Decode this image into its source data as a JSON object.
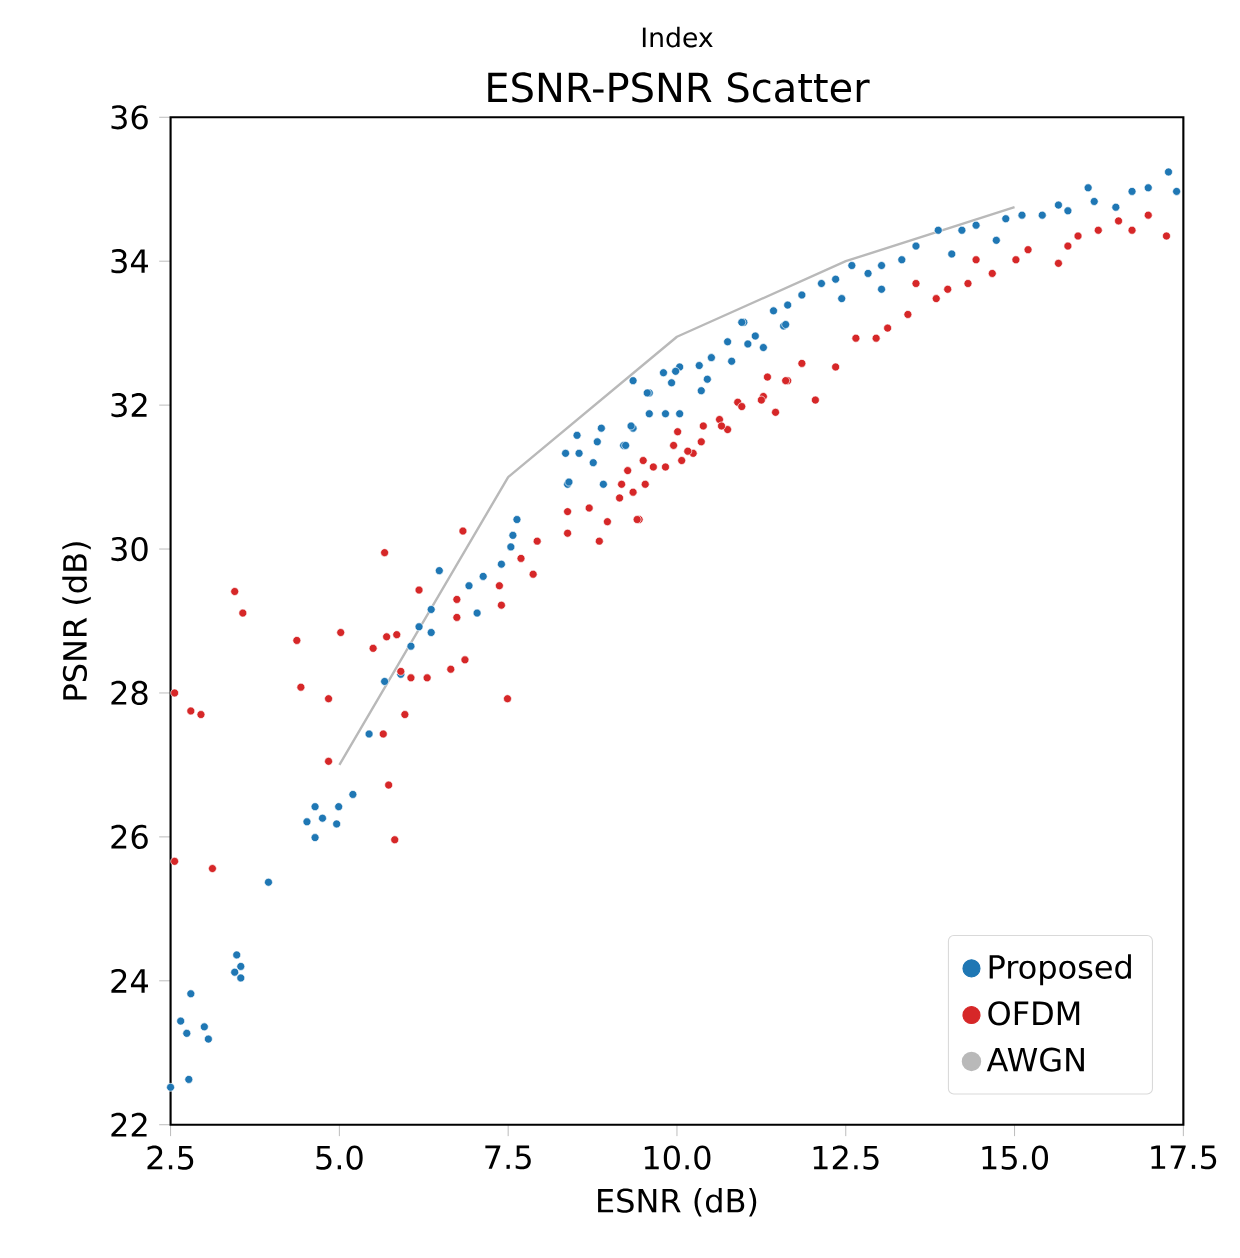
{
  "chart_data": {
    "type": "scatter",
    "title": "ESNR-PSNR Scatter",
    "xlabel": "ESNR (dB)",
    "ylabel": "PSNR (dB)",
    "annotations": [
      "Index"
    ],
    "xlim": [
      2.5,
      17.5
    ],
    "ylim": [
      22,
      36
    ],
    "xticks": [
      {
        "value": 2.5,
        "label": "2.5"
      },
      {
        "value": 5,
        "label": "5.0"
      },
      {
        "value": 7.5,
        "label": "7.5"
      },
      {
        "value": 10,
        "label": "10.0"
      },
      {
        "value": 12.5,
        "label": "12.5"
      },
      {
        "value": 15,
        "label": "15.0"
      },
      {
        "value": 17.5,
        "label": "17.5"
      }
    ],
    "yticks": [
      22,
      24,
      26,
      28,
      30,
      32,
      34,
      36
    ],
    "legend": "bottom right",
    "marker": "circle",
    "series": [
      {
        "name": "Proposed",
        "color": "#1f77b4",
        "x": [
          2.5,
          2.77,
          2.65,
          2.74,
          2.8,
          3.0,
          3.06,
          3.48,
          3.45,
          3.54,
          3.54,
          3.95,
          4.52,
          4.64,
          4.75,
          4.64,
          4.99,
          4.96,
          5.2,
          5.44,
          5.67,
          5.91,
          6.06,
          6.18,
          6.36,
          6.36,
          6.48,
          6.92,
          7.04,
          7.13,
          7.4,
          7.54,
          7.57,
          7.63,
          8.38,
          8.4,
          8.91,
          8.35,
          8.55,
          8.52,
          8.76,
          8.82,
          8.88,
          9.21,
          9.35,
          9.35,
          9.59,
          9.59,
          9.8,
          9.83,
          10.04,
          9.92,
          10.04,
          10.33,
          10.36,
          10.45,
          10.51,
          10.75,
          10.81,
          10.99,
          11.05,
          11.16,
          11.28,
          11.43,
          11.58,
          17.28,
          17.4,
          16.98,
          16.74,
          16.5,
          16.18,
          16.09,
          15.79,
          15.65,
          15.41,
          15.11,
          14.87,
          14.73,
          14.43,
          14.22,
          14.07,
          13.87,
          13.54,
          13.33,
          13.03,
          13.03,
          12.83,
          12.59,
          12.44,
          12.35,
          12.14,
          11.85,
          11.64,
          11.61,
          10.96,
          9.98,
          9.56,
          9.32,
          9.24
        ],
        "values": [
          22.52,
          22.63,
          23.44,
          23.27,
          23.82,
          23.36,
          23.19,
          24.36,
          24.12,
          24.2,
          24.04,
          25.37,
          26.21,
          26.42,
          26.26,
          25.99,
          26.42,
          26.18,
          26.59,
          27.43,
          28.16,
          28.26,
          28.65,
          28.92,
          28.84,
          29.16,
          29.7,
          29.49,
          29.11,
          29.62,
          29.79,
          30.03,
          30.19,
          30.41,
          30.9,
          30.93,
          30.9,
          31.33,
          31.33,
          31.58,
          31.2,
          31.49,
          31.68,
          31.44,
          31.68,
          32.34,
          31.88,
          32.17,
          32.45,
          31.88,
          31.88,
          32.31,
          32.53,
          32.55,
          32.2,
          32.36,
          32.66,
          32.88,
          32.61,
          33.15,
          32.85,
          32.96,
          32.8,
          33.31,
          33.1,
          35.24,
          34.97,
          35.02,
          34.97,
          34.75,
          34.83,
          35.02,
          34.7,
          34.78,
          34.64,
          34.64,
          34.59,
          34.29,
          34.5,
          34.43,
          34.1,
          34.43,
          34.21,
          34.02,
          33.94,
          33.61,
          33.83,
          33.94,
          33.48,
          33.75,
          33.69,
          33.53,
          33.39,
          33.12,
          33.15,
          32.47,
          32.17,
          31.71,
          31.44
        ]
      },
      {
        "name": "OFDM",
        "color": "#d62728",
        "x": [
          2.56,
          2.56,
          2.8,
          2.95,
          3.12,
          3.45,
          3.57,
          4.37,
          4.43,
          4.84,
          4.84,
          5.02,
          5.5,
          5.67,
          5.7,
          5.85,
          5.65,
          5.73,
          5.82,
          5.97,
          5.91,
          6.06,
          6.3,
          6.18,
          6.65,
          6.86,
          6.74,
          6.74,
          6.83,
          7.4,
          7.49,
          7.93,
          7.69,
          7.87,
          7.37,
          8.38,
          8.38,
          8.7,
          8.85,
          8.97,
          9.15,
          9.18,
          9.35,
          9.44,
          9.53,
          9.27,
          9.5,
          9.65,
          9.83,
          10.07,
          9.95,
          10.24,
          10.36,
          10.01,
          10.39,
          10.63,
          10.75,
          10.9,
          11.28,
          11.46,
          11.34,
          11.64,
          9.41,
          10.16,
          10.66,
          10.96,
          11.25,
          11.61,
          12.05,
          11.85,
          12.35,
          12.65,
          12.95,
          13.12,
          13.42,
          13.54,
          13.84,
          14.01,
          14.31,
          14.43,
          14.67,
          15.02,
          15.2,
          15.65,
          15.79,
          15.94,
          16.24,
          16.54,
          16.74,
          16.98,
          17.25
        ],
        "values": [
          28.0,
          25.66,
          27.75,
          27.7,
          25.56,
          29.41,
          29.11,
          28.73,
          28.08,
          27.92,
          27.05,
          28.84,
          28.62,
          29.95,
          28.78,
          28.81,
          27.43,
          26.72,
          25.96,
          27.7,
          28.3,
          28.21,
          28.21,
          29.43,
          28.33,
          28.46,
          29.3,
          29.05,
          30.25,
          29.22,
          27.92,
          30.11,
          29.87,
          29.65,
          29.49,
          30.52,
          30.22,
          30.57,
          30.11,
          30.38,
          30.71,
          30.9,
          30.79,
          30.41,
          30.9,
          31.09,
          31.23,
          31.14,
          31.14,
          31.23,
          31.44,
          31.33,
          31.49,
          31.63,
          31.71,
          31.8,
          31.66,
          32.04,
          32.12,
          31.9,
          32.39,
          32.34,
          30.41,
          31.36,
          31.71,
          31.98,
          32.07,
          32.34,
          32.07,
          32.58,
          32.53,
          32.93,
          32.93,
          33.07,
          33.26,
          33.69,
          33.48,
          33.61,
          33.69,
          34.02,
          33.83,
          34.02,
          34.16,
          33.97,
          34.21,
          34.35,
          34.43,
          34.56,
          34.43,
          34.64,
          34.35
        ]
      },
      {
        "name": "AWGN",
        "color": "#b9b9b9",
        "type": "line",
        "marker": "none",
        "x": [
          5,
          7.5,
          10,
          12.5,
          15
        ],
        "values": [
          27.0,
          31.0,
          32.95,
          34.0,
          34.75
        ]
      }
    ]
  }
}
